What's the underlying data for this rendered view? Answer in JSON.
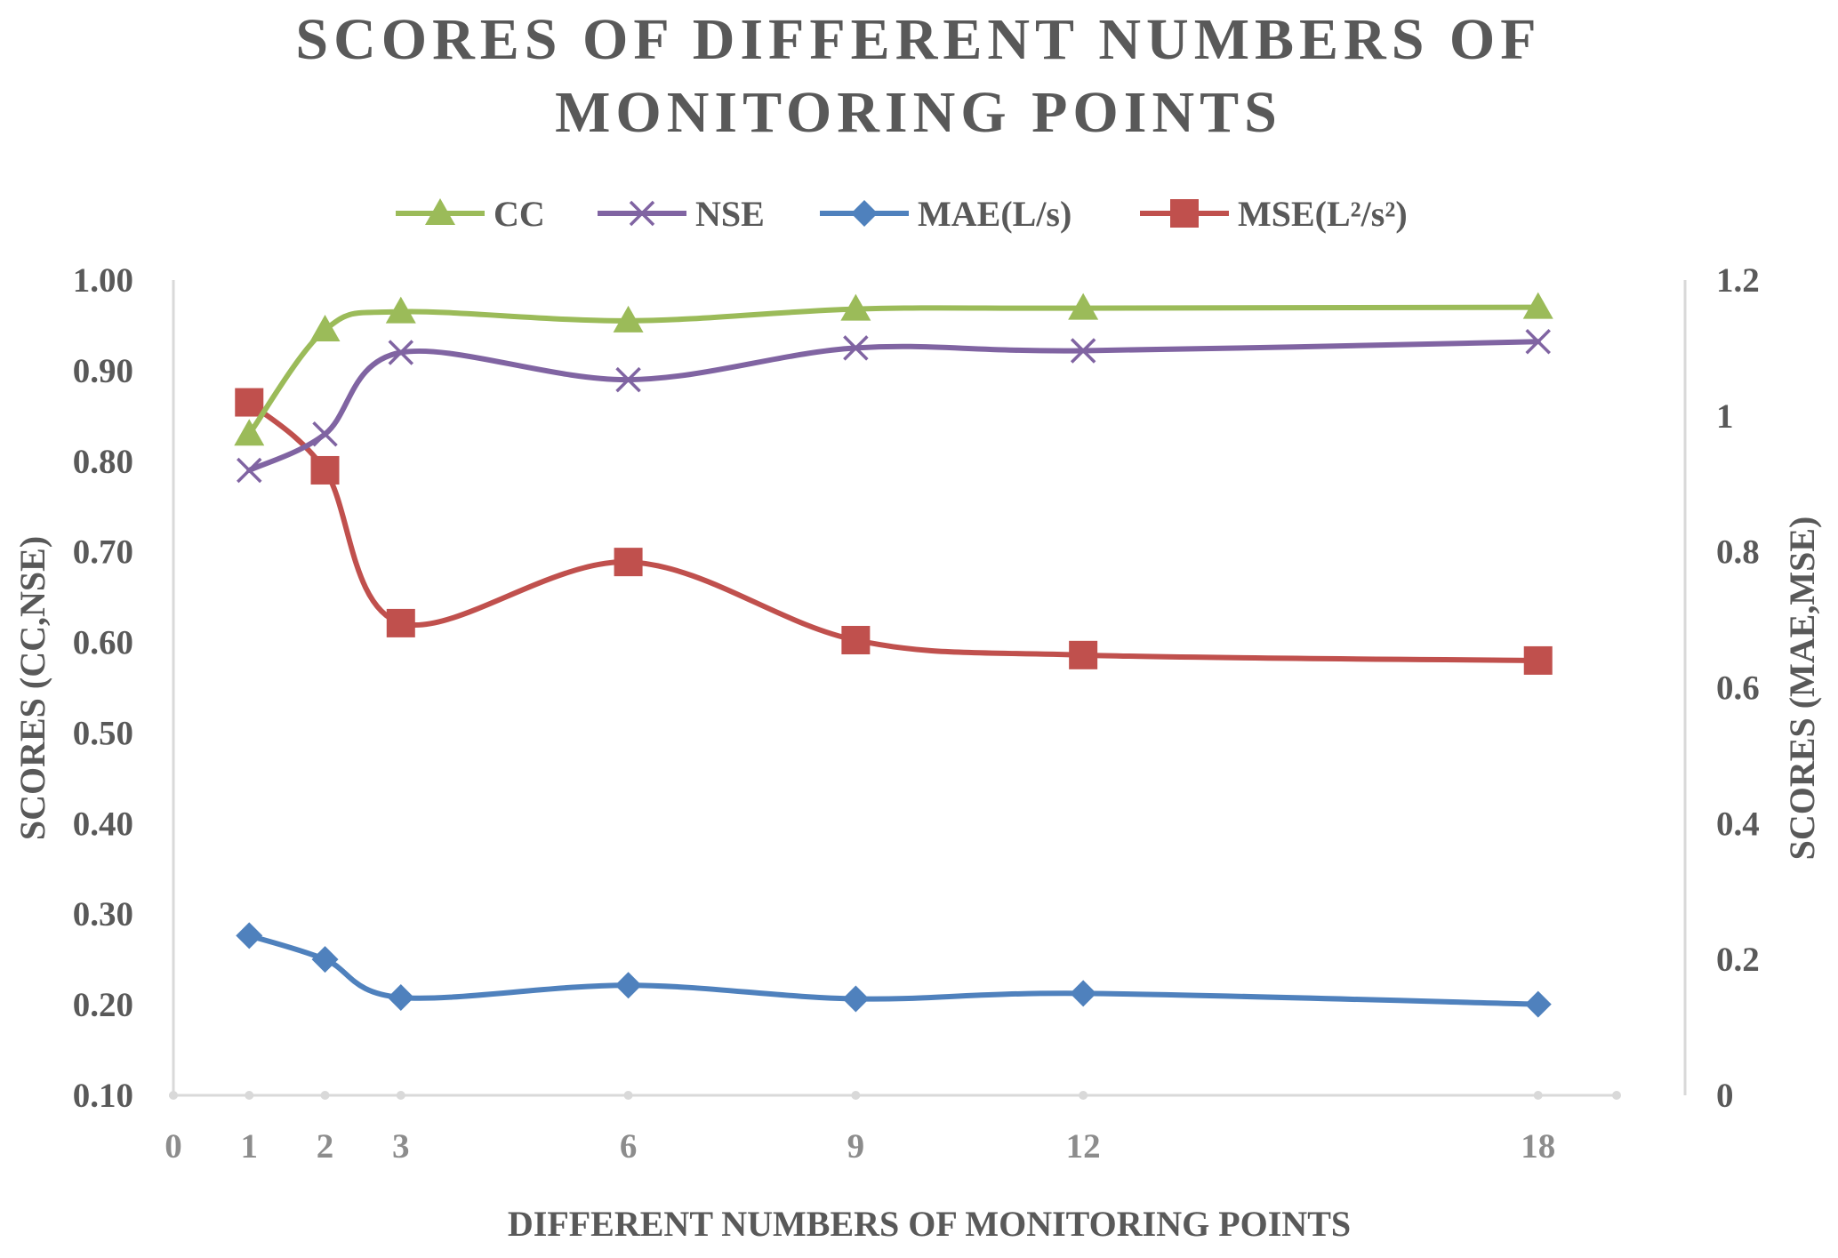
{
  "chart_data": {
    "type": "line",
    "title": "SCORES OF DIFFERENT NUMBERS OF MONITORING POINTS",
    "title_lines": [
      "SCORES OF DIFFERENT NUMBERS OF",
      "MONITORING POINTS"
    ],
    "xlabel": "DIFFERENT NUMBERS OF MONITORING POINTS",
    "ylabel": "SCORES (CC,NSE)",
    "y2label": "SCORES (MAE,MSE)",
    "x": [
      1,
      2,
      3,
      6,
      9,
      12,
      18
    ],
    "x_ticks": [
      "0",
      "1",
      "2",
      "3",
      "6",
      "9",
      "12",
      "18"
    ],
    "xlim": [
      0,
      19
    ],
    "ylim": [
      0.1,
      1.0
    ],
    "y_ticks": [
      "0.10",
      "0.20",
      "0.30",
      "0.40",
      "0.50",
      "0.60",
      "0.70",
      "0.80",
      "0.90",
      "1.00"
    ],
    "y2lim": [
      0,
      1.2
    ],
    "y2_ticks": [
      "0",
      "0.2",
      "0.4",
      "0.6",
      "0.8",
      "1",
      "1.2"
    ],
    "grid": false,
    "legend_position": "top",
    "series": [
      {
        "name": "CC",
        "axis": "left",
        "marker": "triangle",
        "color": "#9bbb59",
        "values": [
          0.83,
          0.945,
          0.965,
          0.955,
          0.968,
          0.969,
          0.97
        ]
      },
      {
        "name": "NSE",
        "axis": "left",
        "marker": "x",
        "color": "#8064a2",
        "values": [
          0.79,
          0.83,
          0.92,
          0.89,
          0.925,
          0.922,
          0.932
        ]
      },
      {
        "name": "MAE(L/s)",
        "axis": "right",
        "marker": "diamond",
        "color": "#4f81bd",
        "values": [
          0.235,
          0.2,
          0.144,
          0.162,
          0.142,
          0.15,
          0.134
        ]
      },
      {
        "name": "MSE(L²/s²)",
        "axis": "right",
        "marker": "square",
        "color": "#c0504d",
        "values": [
          1.02,
          0.92,
          0.695,
          0.785,
          0.67,
          0.648,
          0.64
        ]
      }
    ]
  }
}
